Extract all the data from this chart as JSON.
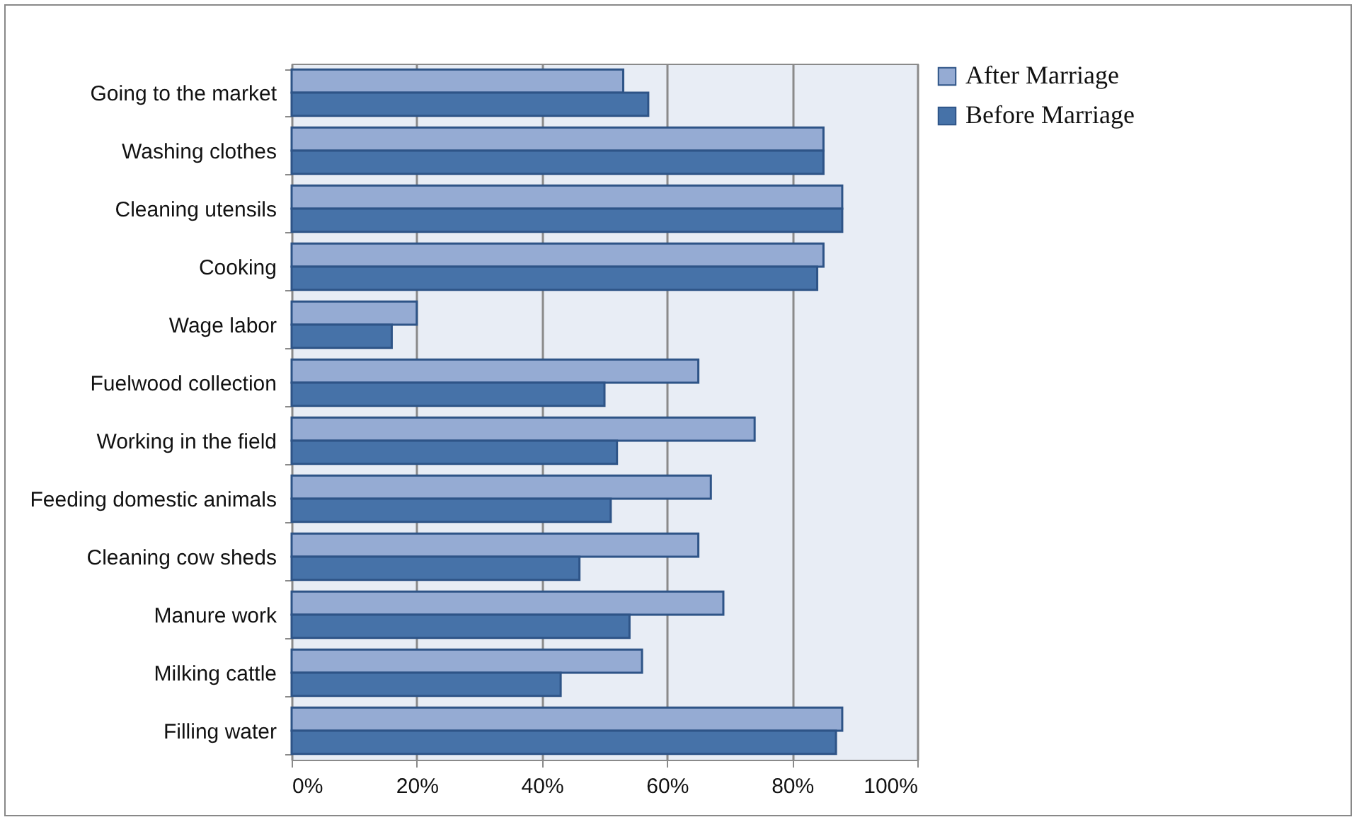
{
  "chart_data": {
    "type": "bar",
    "orientation": "horizontal",
    "categories": [
      "Going to the market",
      "Washing clothes",
      "Cleaning utensils",
      "Cooking",
      "Wage labor",
      "Fuelwood collection",
      "Working in the field",
      "Feeding domestic animals",
      "Cleaning cow sheds",
      "Manure work",
      "Milking cattle",
      "Filling water"
    ],
    "series": [
      {
        "name": "After Marriage",
        "color": "#95abd3",
        "values": [
          53,
          85,
          88,
          85,
          20,
          65,
          74,
          67,
          65,
          69,
          56,
          88
        ]
      },
      {
        "name": "Before Marriage",
        "color": "#4672a8",
        "values": [
          57,
          85,
          88,
          84,
          16,
          50,
          52,
          51,
          46,
          54,
          43,
          87
        ]
      }
    ],
    "xlim": [
      0,
      100
    ],
    "xticks": [
      {
        "value": 0,
        "label": "0%"
      },
      {
        "value": 20,
        "label": "20%"
      },
      {
        "value": 40,
        "label": "40%"
      },
      {
        "value": 60,
        "label": "60%"
      },
      {
        "value": 80,
        "label": "80%"
      },
      {
        "value": 100,
        "label": "100%"
      }
    ],
    "grid": "x",
    "legend": "right"
  }
}
